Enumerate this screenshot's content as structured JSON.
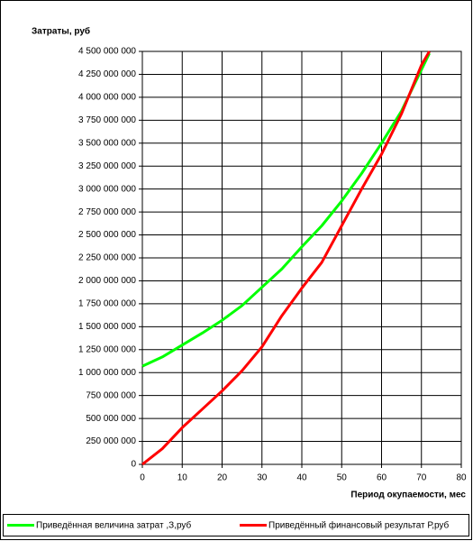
{
  "chart_data": {
    "type": "line",
    "y_label": "Затраты, руб",
    "x_label": "Период окупаемости, мес",
    "x": [
      0,
      5,
      10,
      15,
      20,
      25,
      30,
      35,
      40,
      45,
      50,
      55,
      60,
      65,
      70,
      72
    ],
    "series": [
      {
        "name": "Приведённая величина затрат ,З,руб",
        "color": "#00ff00",
        "values": [
          1070000000,
          1170000000,
          1300000000,
          1430000000,
          1570000000,
          1730000000,
          1930000000,
          2130000000,
          2370000000,
          2600000000,
          2870000000,
          3170000000,
          3500000000,
          3850000000,
          4300000000,
          4480000000
        ]
      },
      {
        "name": "Приведённый финансовый результат Р,руб",
        "color": "#ff0000",
        "values": [
          0,
          170000000,
          400000000,
          600000000,
          800000000,
          1020000000,
          1280000000,
          1620000000,
          1920000000,
          2200000000,
          2600000000,
          3000000000,
          3380000000,
          3820000000,
          4350000000,
          4500000000
        ]
      }
    ],
    "xlim": [
      0,
      80
    ],
    "xticks": [
      0,
      10,
      20,
      30,
      40,
      50,
      60,
      70,
      80
    ],
    "ylim": [
      0,
      4500000000
    ],
    "yticks": [
      0,
      {
        "value": 250000000,
        "label": "250 000 000"
      },
      {
        "value": 500000000,
        "label": "500 000 000"
      },
      {
        "value": 750000000,
        "label": "750 000 000"
      },
      {
        "value": 1000000000,
        "label": "1 000 000 000"
      },
      {
        "value": 1250000000,
        "label": "1 250 000 000"
      },
      {
        "value": 1500000000,
        "label": "1 500 000 000"
      },
      {
        "value": 1750000000,
        "label": "1 750 000 000"
      },
      {
        "value": 2000000000,
        "label": "2 000 000 000"
      },
      {
        "value": 2250000000,
        "label": "2 250 000 000"
      },
      {
        "value": 2500000000,
        "label": "2 500 000 000"
      },
      {
        "value": 2750000000,
        "label": "2 750 000 000"
      },
      {
        "value": 3000000000,
        "label": "3 000 000 000"
      },
      {
        "value": 3250000000,
        "label": "3 250 000 000"
      },
      {
        "value": 3500000000,
        "label": "3 500 000 000"
      },
      {
        "value": 3750000000,
        "label": "3 750 000 000"
      },
      {
        "value": 4000000000,
        "label": "4 000 000 000"
      },
      {
        "value": 4250000000,
        "label": "4 250 000 000"
      },
      {
        "value": 4500000000,
        "label": "4 500 000 000"
      }
    ],
    "grid": true
  }
}
